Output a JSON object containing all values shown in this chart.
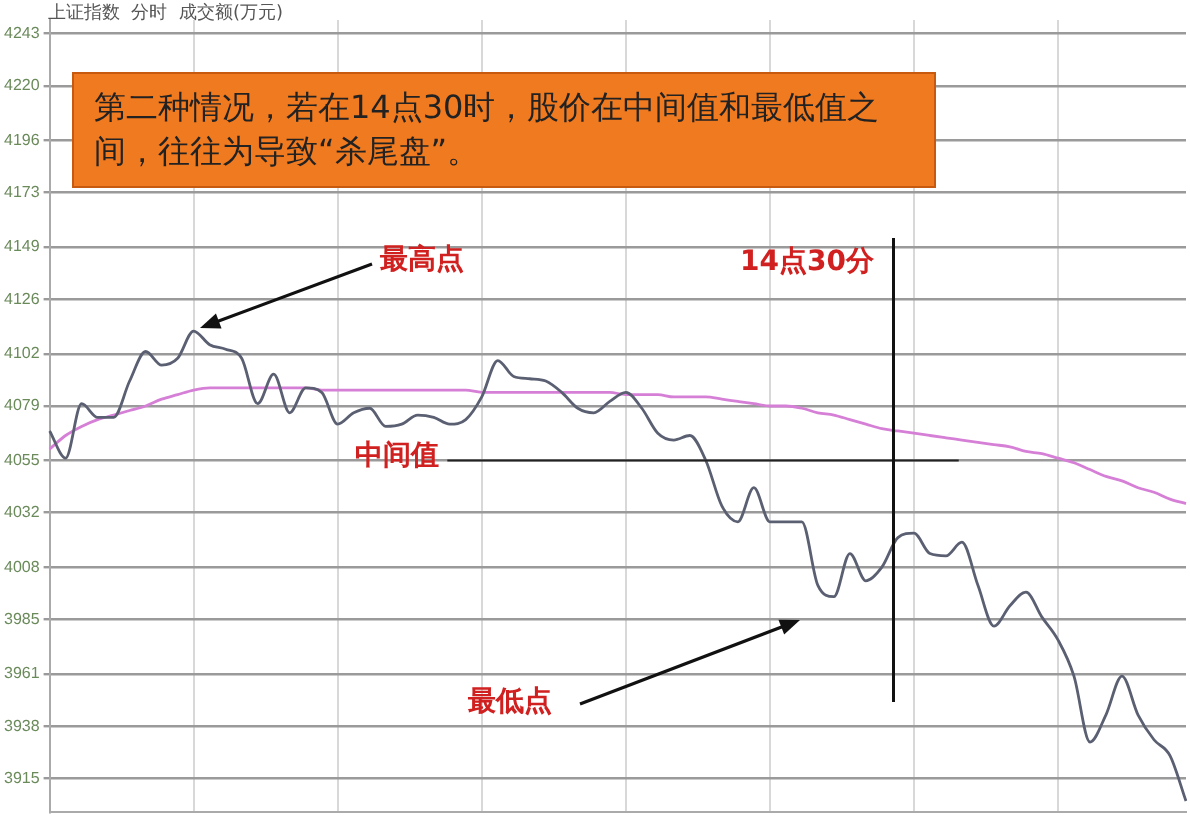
{
  "chart_data": {
    "type": "line",
    "title": "第二种情况，若在14点30时，股价在中间值和最低值之间，往往为导致“杀尾盘”。",
    "subtitle": "上证指数  分时  成交额(万元)",
    "categories": [
      null,
      null,
      null,
      null,
      null,
      null,
      null,
      null,
      null,
      null,
      null,
      null,
      null,
      null,
      null,
      null,
      null,
      null,
      null,
      null,
      null,
      null,
      null,
      null,
      null,
      null,
      null,
      null,
      null,
      null,
      null,
      null,
      null,
      null,
      null,
      null,
      null,
      null,
      null,
      null,
      null,
      null,
      null,
      null,
      null,
      null,
      null,
      null,
      null,
      null,
      null,
      null,
      null,
      null,
      null,
      null,
      null,
      null,
      null,
      null,
      null,
      null,
      null,
      null,
      null,
      null,
      null,
      null,
      null,
      null,
      null,
      null
    ],
    "series": [
      {
        "color": "#5a5f72",
        "values": [
          4068,
          4056,
          4080,
          4074,
          4074,
          4090,
          4103,
          4097,
          4100,
          4112,
          4106,
          4104,
          4100,
          4080,
          4093,
          4076,
          4087,
          4085,
          4071,
          4076,
          4078,
          4070,
          4071,
          4075,
          4074,
          4071,
          4073,
          4083,
          4099,
          4092,
          4091,
          4090,
          4085,
          4078,
          4076,
          4081,
          4085,
          4078,
          4067,
          4064,
          4066,
          4055,
          4035,
          4028,
          4043,
          4028,
          4028,
          4028,
          4000,
          3995,
          4014,
          4002,
          4008,
          4021,
          4023,
          4014,
          4013,
          4019,
          4000,
          3982,
          3991,
          3997,
          3986,
          3976,
          3960,
          3931,
          3943,
          3960,
          3943,
          3932,
          3925,
          3905
        ]
      },
      {
        "color": "#d67fd6",
        "values": [
          4060,
          4066,
          4070,
          4073,
          4075,
          4077,
          4079,
          4082,
          4084,
          4086,
          4087,
          4087,
          4087,
          4087,
          4087,
          4087,
          4087,
          4086,
          4086,
          4086,
          4086,
          4086,
          4086,
          4086,
          4086,
          4086,
          4086,
          4085,
          4085,
          4085,
          4085,
          4085,
          4085,
          4085,
          4085,
          4085,
          4084,
          4084,
          4084,
          4083,
          4083,
          4083,
          4082,
          4081,
          4080,
          4079,
          4079,
          4078,
          4076,
          4075,
          4073,
          4071,
          4069,
          4068,
          4067,
          4066,
          4065,
          4064,
          4063,
          4062,
          4061,
          4059,
          4058,
          4056,
          4054,
          4051,
          4048,
          4046,
          4043,
          4041,
          4038,
          4036
        ]
      }
    ],
    "ylim": [
      3900,
      4249
    ],
    "yticks": [
      4243,
      4220,
      4196,
      4173,
      4149,
      4126,
      4102,
      4079,
      4055,
      4032,
      4008,
      3985,
      3961,
      3938,
      3915
    ],
    "ref_lines": [
      {
        "axis": "y",
        "value": 4055,
        "label": "中间值"
      }
    ],
    "annotations": [
      "最高点",
      "14点30分",
      "最低点"
    ],
    "grid": true,
    "legend": false,
    "marker": "none",
    "line_style": "solid"
  }
}
